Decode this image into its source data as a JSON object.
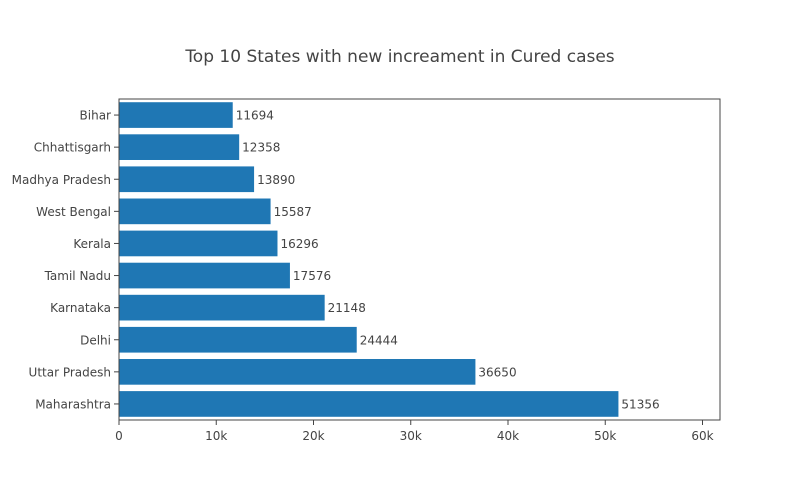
{
  "chart_data": {
    "type": "bar",
    "orientation": "horizontal",
    "title": "Top 10 States with new increament in Cured cases",
    "categories": [
      "Bihar",
      "Chhattisgarh",
      "Madhya Pradesh",
      "West Bengal",
      "Kerala",
      "Tamil Nadu",
      "Karnataka",
      "Delhi",
      "Uttar Pradesh",
      "Maharashtra"
    ],
    "values": [
      11694,
      12358,
      13890,
      15587,
      16296,
      17576,
      21148,
      24444,
      36650,
      51356
    ],
    "value_labels": [
      "11694",
      "12358",
      "13890",
      "15587",
      "16296",
      "17576",
      "21148",
      "24444",
      "36650",
      "51356"
    ],
    "xlim": [
      0,
      61800
    ],
    "x_ticks": [
      0,
      10000,
      20000,
      30000,
      40000,
      50000,
      60000
    ],
    "x_tick_labels": [
      "0",
      "10k",
      "20k",
      "30k",
      "40k",
      "50k",
      "60k"
    ],
    "grid": false,
    "bar_color": "#1f77b4"
  }
}
